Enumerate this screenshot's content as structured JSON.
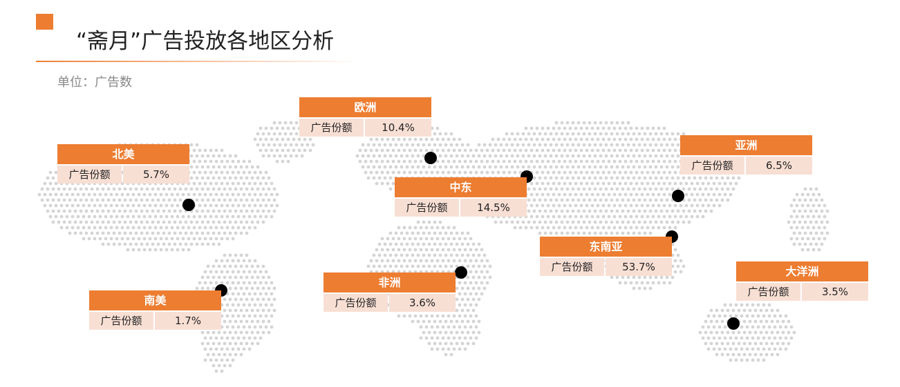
{
  "header": {
    "title": "“斋月”广告投放各地区分析",
    "unit": "单位：广告数"
  },
  "regions": [
    {
      "name": "欧洲",
      "label": "广告份额",
      "share": "10.4%"
    },
    {
      "name": "北美",
      "label": "广告份额",
      "share": "5.7%"
    },
    {
      "name": "中东",
      "label": "广告份额",
      "share": "14.5%"
    },
    {
      "name": "亚洲",
      "label": "广告份额",
      "share": "6.5%"
    },
    {
      "name": "东南亚",
      "label": "广告份额",
      "share": "53.7%"
    },
    {
      "name": "非洲",
      "label": "广告份额",
      "share": "3.6%"
    },
    {
      "name": "南美",
      "label": "广告份额",
      "share": "1.7%"
    },
    {
      "name": "大洋洲",
      "label": "广告份额",
      "share": "3.5%"
    }
  ]
}
